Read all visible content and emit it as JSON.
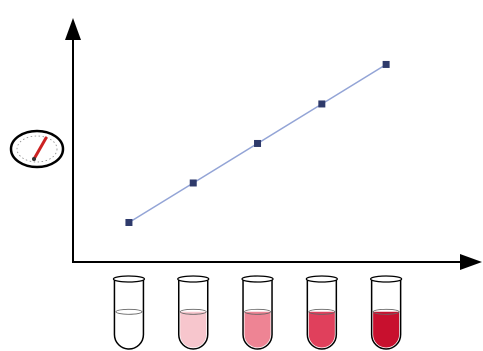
{
  "chart_data": {
    "type": "line",
    "title": "",
    "xlabel": "",
    "ylabel": "",
    "grid": false,
    "legend": "none",
    "x": [
      1,
      2,
      3,
      4,
      5
    ],
    "series": [
      {
        "values": [
          1.0,
          2.0,
          3.0,
          4.0,
          5.0
        ]
      }
    ],
    "xlim": [
      0.13,
      6.18
    ],
    "ylim": [
      0.0,
      5.72
    ],
    "colors": {
      "line": "#93a4d6",
      "marker": "#2e3a6b",
      "axis": "#000000"
    }
  },
  "axis_icon": {
    "name": "gauge-icon",
    "needle_color": "#cc2222"
  },
  "tubes": [
    {
      "name": "tube-1",
      "fill_color": "#ffffff",
      "fill_level": 0.55
    },
    {
      "name": "tube-2",
      "fill_color": "#f7c6cd",
      "fill_level": 0.55
    },
    {
      "name": "tube-3",
      "fill_color": "#ee8494",
      "fill_level": 0.55
    },
    {
      "name": "tube-4",
      "fill_color": "#e0405c",
      "fill_level": 0.55
    },
    {
      "name": "tube-5",
      "fill_color": "#c8102e",
      "fill_level": 0.55
    }
  ]
}
